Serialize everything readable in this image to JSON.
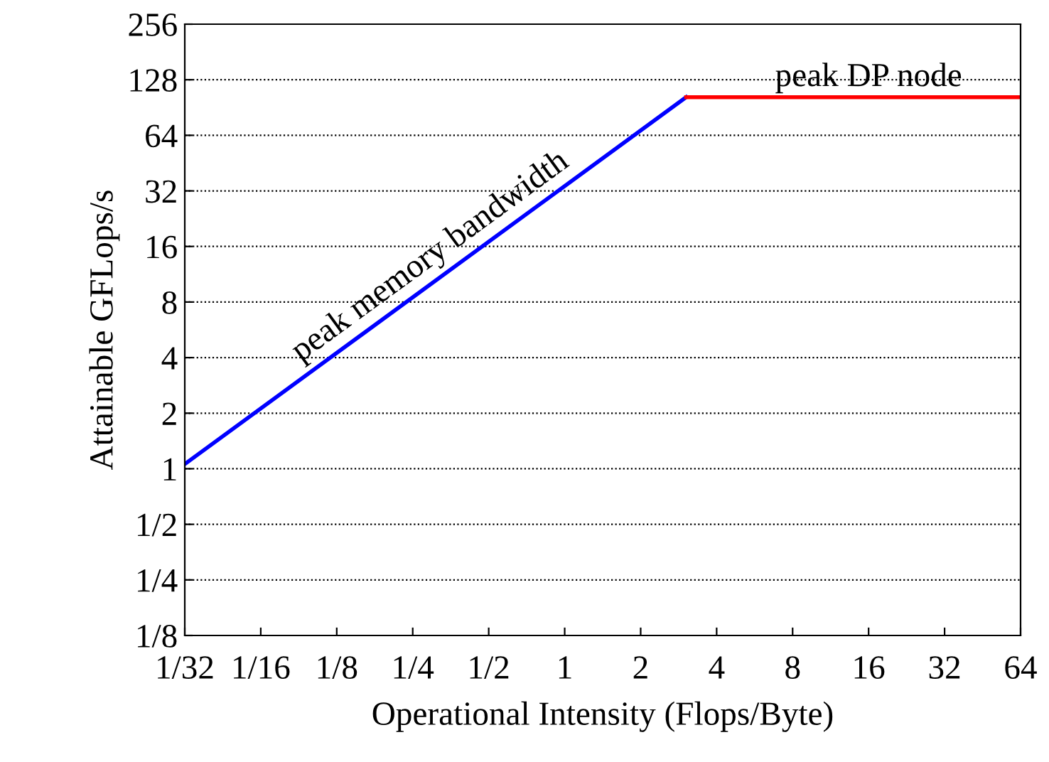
{
  "chart_data": {
    "type": "line",
    "xlabel": "Operational Intensity (Flops/Byte)",
    "ylabel": "Attainable GFLops/s",
    "log": "xy",
    "grid": "y",
    "marker": "none",
    "line_style": "solid",
    "xlim": [
      0.03125,
      64
    ],
    "ylim": [
      0.125,
      256
    ],
    "xticks": [
      {
        "value": 0.03125,
        "label": "1/32"
      },
      {
        "value": 0.0625,
        "label": "1/16"
      },
      {
        "value": 0.125,
        "label": "1/8"
      },
      {
        "value": 0.25,
        "label": "1/4"
      },
      {
        "value": 0.5,
        "label": "1/2"
      },
      1,
      2,
      4,
      8,
      16,
      32,
      64
    ],
    "yticks": [
      {
        "value": 0.125,
        "label": "1/8"
      },
      {
        "value": 0.25,
        "label": "1/4"
      },
      {
        "value": 0.5,
        "label": "1/2"
      },
      1,
      2,
      4,
      8,
      16,
      32,
      64,
      128,
      256
    ],
    "series": [
      {
        "color": "#0000ff",
        "x": [
          0.03125,
          3.03
        ],
        "values": [
          1.06,
          103
        ]
      },
      {
        "color": "#ff0000",
        "x": [
          3.03,
          64
        ],
        "values": [
          103,
          103
        ]
      }
    ],
    "annotations": [
      {
        "text": "peak memory bandwidth",
        "x": 0.32,
        "y": 12
      },
      {
        "text": "peak DP node",
        "x": 16,
        "y": 103
      }
    ]
  }
}
